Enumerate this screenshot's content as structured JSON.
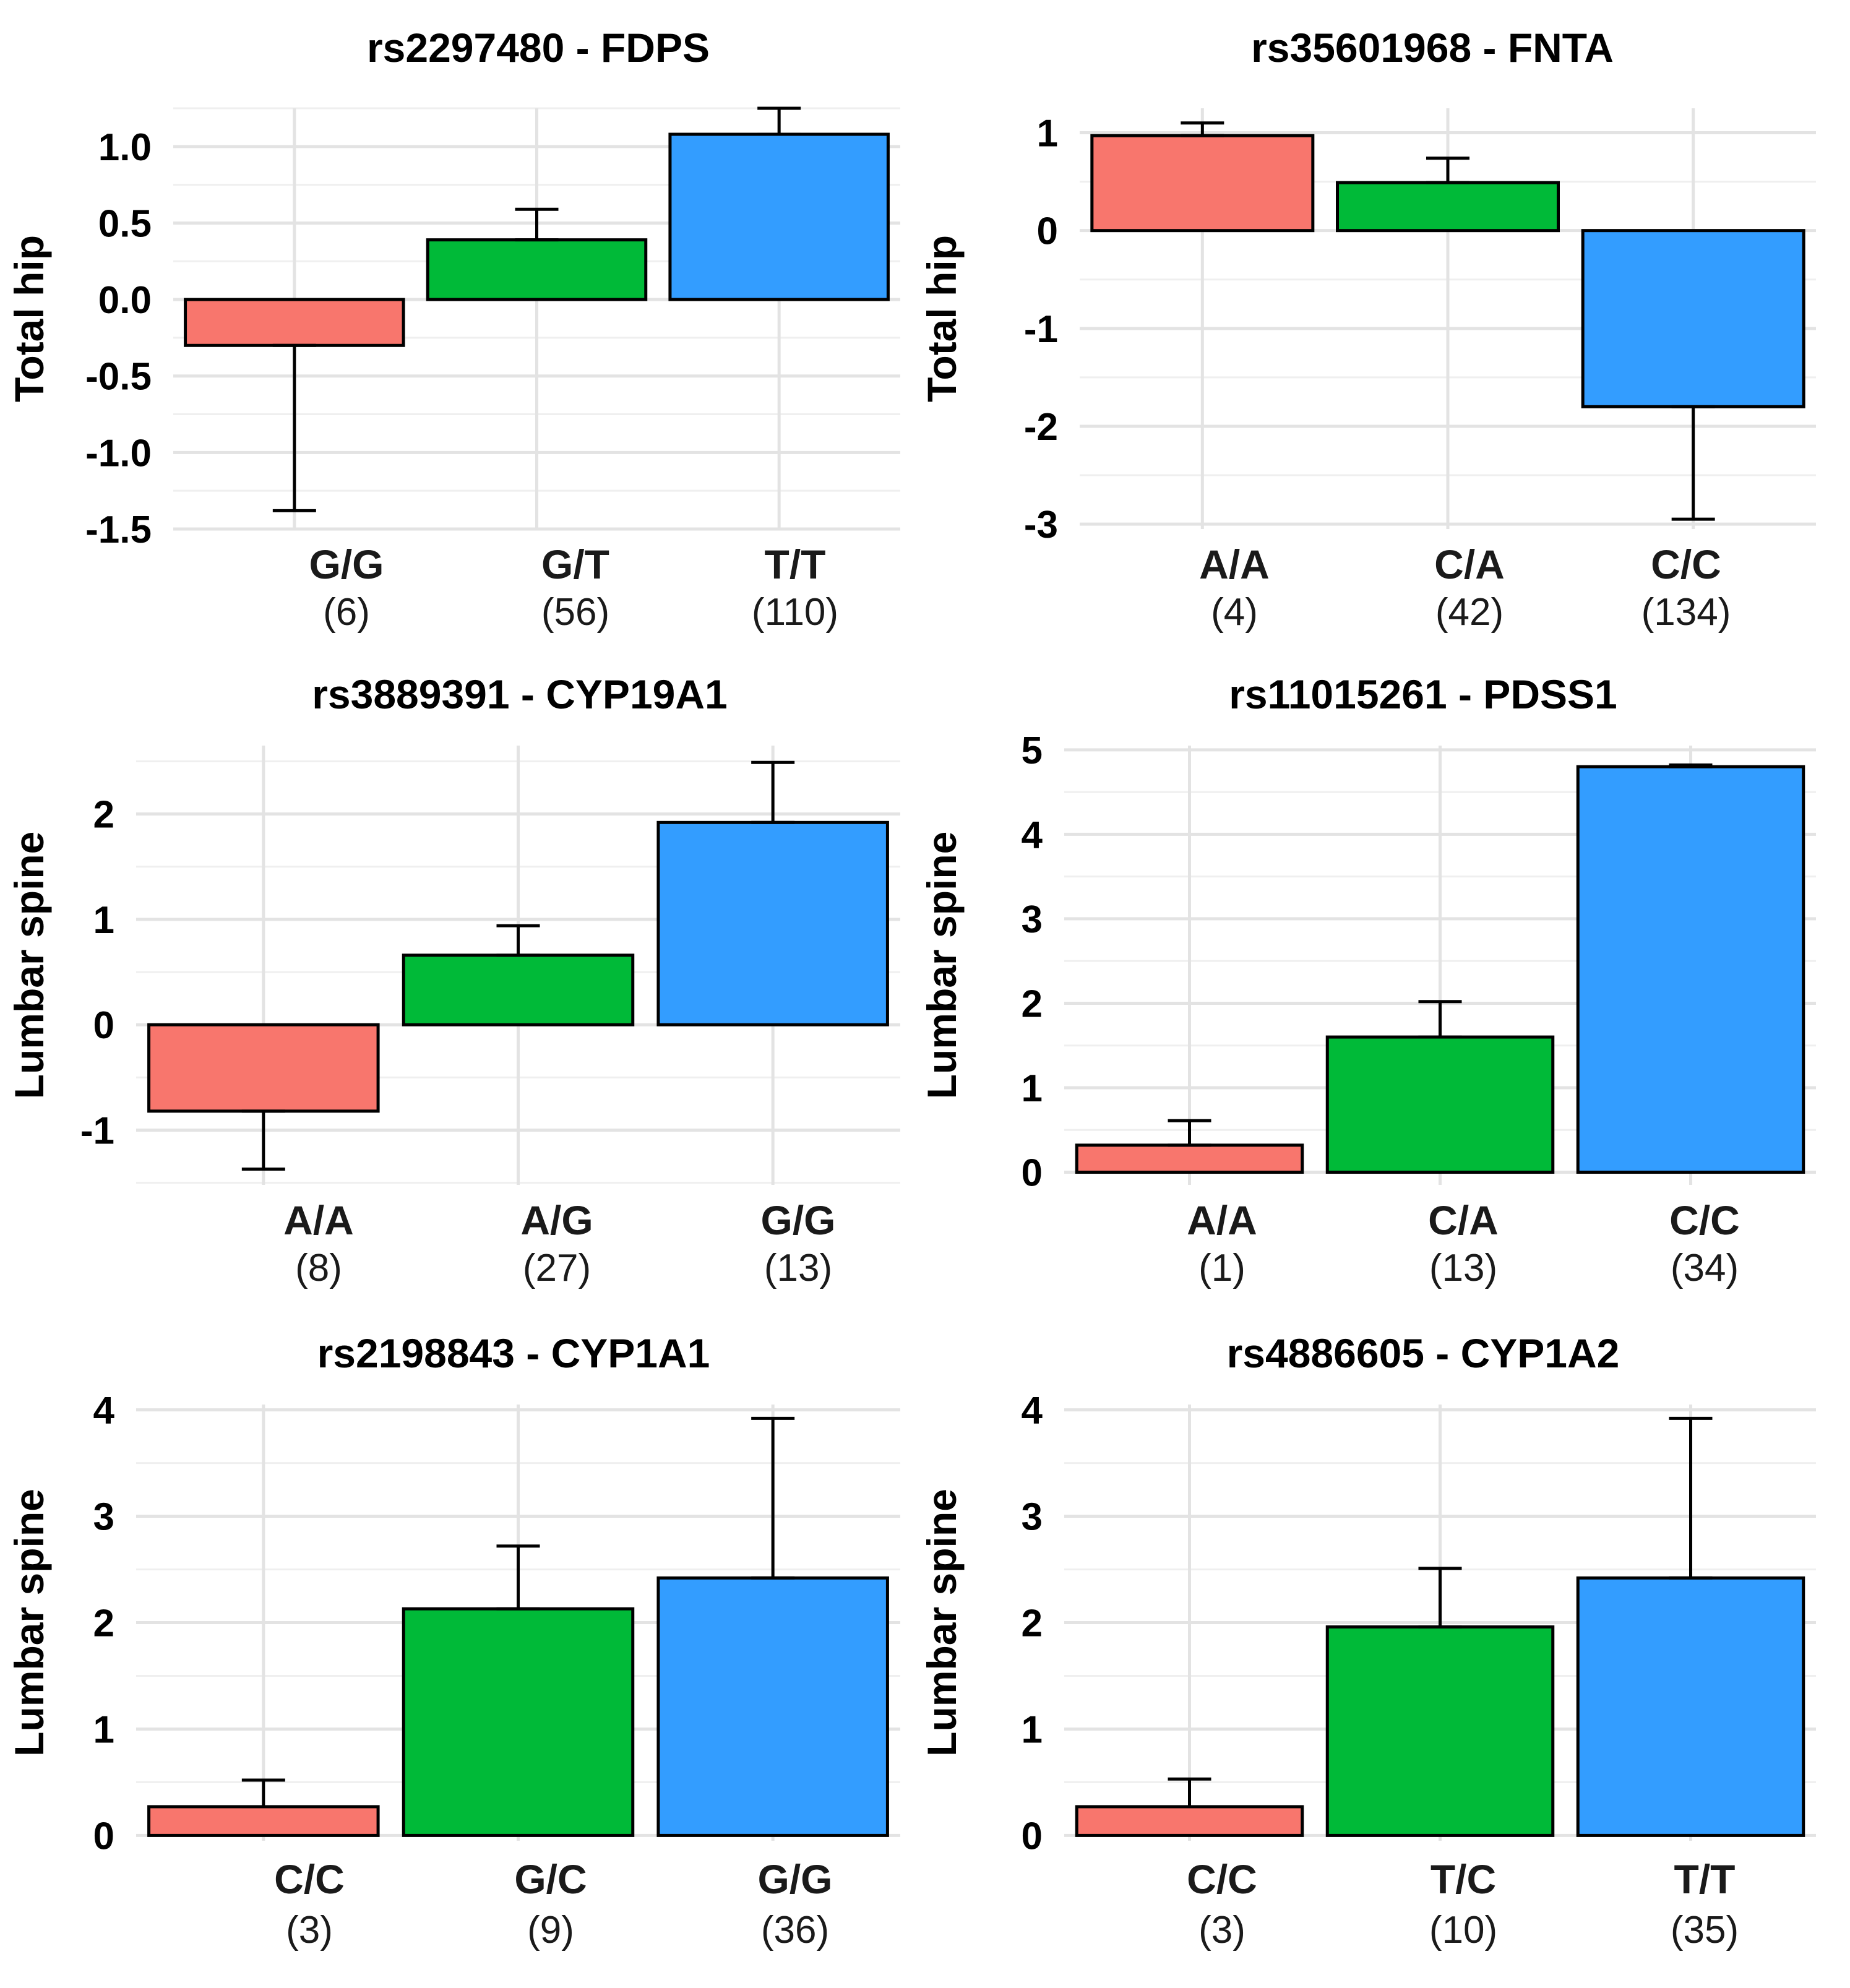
{
  "colors": {
    "first": "#f8766d",
    "second": "#00ba38",
    "third": "#339dff"
  },
  "chart_data": [
    {
      "type": "bar",
      "title": "rs2297480 - FDPS",
      "ylabel": "Total hip",
      "xlabel": "",
      "categories": [
        "G/G",
        "G/T",
        "T/T"
      ],
      "counts": [
        "(6)",
        "(56)",
        "(110)"
      ],
      "values": [
        -0.3,
        0.39,
        1.08
      ],
      "error_ends": [
        -1.38,
        0.59,
        1.25
      ],
      "ylim": [
        -1.5,
        1.25
      ],
      "yticks": [
        -1.5,
        -1.0,
        -0.5,
        0.0,
        0.5,
        1.0
      ],
      "ytick_labels": [
        "-1.5",
        "-1.0",
        "-0.5",
        "0.0",
        "0.5",
        "1.0"
      ]
    },
    {
      "type": "bar",
      "title": "rs35601968 - FNTA",
      "ylabel": "Total hip",
      "xlabel": "",
      "categories": [
        "A/A",
        "C/A",
        "C/C"
      ],
      "counts": [
        "(4)",
        "(42)",
        "(134)"
      ],
      "values": [
        0.97,
        0.49,
        -1.8
      ],
      "error_ends": [
        1.1,
        0.74,
        -2.95
      ],
      "ylim": [
        -3.05,
        1.25
      ],
      "yticks": [
        -3,
        -2,
        -1,
        0,
        1
      ],
      "ytick_labels": [
        "-3",
        "-2",
        "-1",
        "0",
        "1"
      ]
    },
    {
      "type": "bar",
      "title": "rs3889391 - CYP19A1",
      "ylabel": "Lumbar spine",
      "xlabel": "",
      "categories": [
        "A/A",
        "A/G",
        "G/G"
      ],
      "counts": [
        "(8)",
        "(27)",
        "(13)"
      ],
      "values": [
        -0.82,
        0.66,
        1.92
      ],
      "error_ends": [
        -1.37,
        0.94,
        2.49
      ],
      "ylim": [
        -1.52,
        2.65
      ],
      "yticks": [
        -1,
        0,
        1,
        2
      ],
      "ytick_labels": [
        "-1",
        "0",
        "1",
        "2"
      ]
    },
    {
      "type": "bar",
      "title": "rs11015261 - PDSS1",
      "ylabel": "Lumbar spine",
      "xlabel": "",
      "categories": [
        "A/A",
        "C/A",
        "C/C"
      ],
      "counts": [
        "(1)",
        "(13)",
        "(34)"
      ],
      "values": [
        0.32,
        1.6,
        4.8
      ],
      "error_ends": [
        0.61,
        2.02,
        4.82
      ],
      "ylim": [
        -0.15,
        5.05
      ],
      "yticks": [
        0,
        1,
        2,
        3,
        4,
        5
      ],
      "ytick_labels": [
        "0",
        "1",
        "2",
        "3",
        "4",
        "5"
      ]
    },
    {
      "type": "bar",
      "title": "rs2198843 - CYP1A1",
      "ylabel": "Lumbar spine",
      "xlabel": "",
      "categories": [
        "C/C",
        "G/C",
        "G/G"
      ],
      "counts": [
        "(3)",
        "(9)",
        "(36)"
      ],
      "values": [
        0.27,
        2.13,
        2.42
      ],
      "error_ends": [
        0.52,
        2.72,
        3.92
      ],
      "ylim": [
        -0.05,
        4.05
      ],
      "yticks": [
        0,
        1,
        2,
        3,
        4
      ],
      "ytick_labels": [
        "0",
        "1",
        "2",
        "3",
        "4"
      ]
    },
    {
      "type": "bar",
      "title": "rs4886605 - CYP1A2",
      "ylabel": "Lumbar spine",
      "xlabel": "",
      "categories": [
        "C/C",
        "T/C",
        "T/T"
      ],
      "counts": [
        "(3)",
        "(10)",
        "(35)"
      ],
      "values": [
        0.27,
        1.96,
        2.42
      ],
      "error_ends": [
        0.53,
        2.51,
        3.92
      ],
      "ylim": [
        -0.05,
        4.05
      ],
      "yticks": [
        0,
        1,
        2,
        3,
        4
      ],
      "ytick_labels": [
        "0",
        "1",
        "2",
        "3",
        "4"
      ]
    }
  ]
}
